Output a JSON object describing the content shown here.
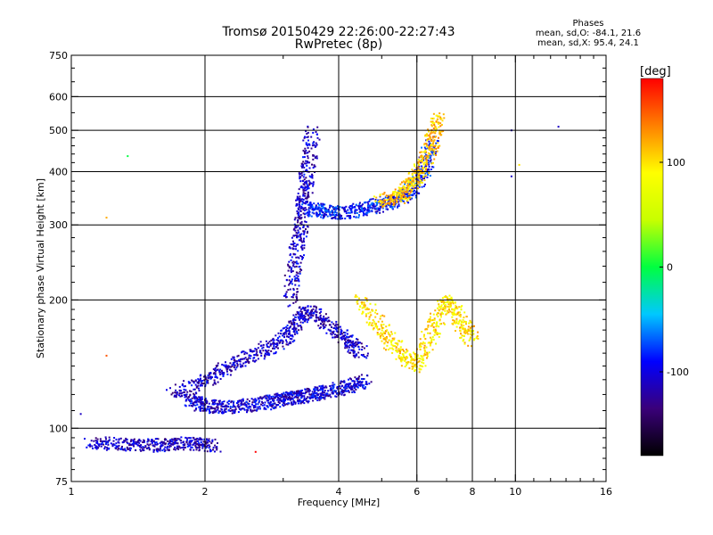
{
  "header": {
    "title_line1": "Tromsø 20150429 22:26:00-22:27:43",
    "title_line2": "RwPretec (8p)"
  },
  "phase_stats": {
    "heading": "Phases",
    "line_o": "mean, sd,O: -84.1, 21.6",
    "line_x": "mean, sd,X:  95.4, 24.1"
  },
  "colorbar": {
    "unit_label": "[deg]",
    "ticks": [
      {
        "value": 100,
        "label": "100"
      },
      {
        "value": 0,
        "label": "0"
      },
      {
        "value": -100,
        "label": "-100"
      }
    ],
    "range": [
      -180,
      180
    ],
    "colors": [
      "#000000",
      "#3a007a",
      "#0000ff",
      "#00c8ff",
      "#00ff40",
      "#c8ff00",
      "#ffff00",
      "#ff8000",
      "#ff0000"
    ]
  },
  "chart_data": {
    "type": "scatter",
    "title": "Tromsø 20150429 22:26:00-22:27:43",
    "subtitle": "RwPretec (8p)",
    "xlabel": "Frequency [MHz]",
    "ylabel": "Stationary phase Virtual Height [km]",
    "xscale": "log",
    "yscale": "log",
    "xlim": [
      1,
      16
    ],
    "ylim": [
      75,
      750
    ],
    "grid": true,
    "xticks": [
      1,
      2,
      4,
      6,
      8,
      10,
      16
    ],
    "yticks": [
      75,
      100,
      200,
      300,
      400,
      500,
      600,
      750
    ],
    "x_grid_lines": [
      2,
      4,
      6,
      8,
      10
    ],
    "y_grid_lines": [
      100,
      200,
      300,
      400,
      500,
      600
    ],
    "color_by": "phase [deg]",
    "traces": [
      {
        "name": "",
        "component": "low-altitude band",
        "x": [
          1.1,
          1.3,
          1.5,
          1.7,
          1.9,
          2.1
        ],
        "y": [
          92,
          92,
          91,
          92,
          92,
          91
        ],
        "phase": -110
      },
      {
        "name": "",
        "component": "lower trace",
        "x": [
          1.85,
          2.0,
          2.2,
          2.5,
          2.8,
          3.0,
          3.2,
          3.5,
          3.8,
          4.2,
          4.6
        ],
        "y": [
          117,
          113,
          112,
          113,
          115,
          117,
          118,
          120,
          122,
          125,
          130
        ],
        "phase": -105
      },
      {
        "name": "",
        "component": "oblique rising trace",
        "x": [
          1.7,
          2.0,
          2.3,
          2.6,
          3.0,
          3.2,
          3.4,
          3.8,
          4.2,
          4.5
        ],
        "y": [
          120,
          130,
          140,
          150,
          160,
          175,
          190,
          175,
          160,
          150
        ],
        "phase": -110
      },
      {
        "name": "",
        "component": "F-layer vertical trace",
        "x": [
          3.1,
          3.2,
          3.3,
          3.35,
          3.4,
          3.5
        ],
        "y": [
          200,
          250,
          300,
          350,
          400,
          500
        ],
        "phase": -110
      },
      {
        "name": "",
        "component": "upper F trace",
        "x": [
          3.4,
          3.7,
          4.0,
          4.5,
          5.0,
          5.5,
          5.8,
          6.2,
          6.5
        ],
        "y": [
          330,
          322,
          320,
          325,
          335,
          345,
          360,
          400,
          470
        ],
        "phase": -90
      },
      {
        "name": "",
        "component": "X-mode trace",
        "x": [
          5.0,
          5.5,
          5.8,
          6.2,
          6.5,
          6.7
        ],
        "y": [
          340,
          350,
          370,
          410,
          470,
          540
        ],
        "phase": 110
      },
      {
        "name": "",
        "component": "scattered echoes",
        "x": [
          4.5,
          5.0,
          5.5,
          6.0,
          6.5,
          7.0,
          7.5,
          8.0
        ],
        "y": [
          200,
          170,
          150,
          140,
          170,
          200,
          180,
          160
        ],
        "phase": 100
      }
    ],
    "isolated_points": [
      {
        "x": 1.34,
        "y": 435,
        "phase": 0
      },
      {
        "x": 1.2,
        "y": 312,
        "phase": 120
      },
      {
        "x": 1.05,
        "y": 108,
        "phase": -110
      },
      {
        "x": 1.2,
        "y": 148,
        "phase": 150
      },
      {
        "x": 2.6,
        "y": 88,
        "phase": 180
      },
      {
        "x": 9.8,
        "y": 500,
        "phase": -110
      },
      {
        "x": 12.5,
        "y": 510,
        "phase": -110
      },
      {
        "x": 9.8,
        "y": 390,
        "phase": -110
      },
      {
        "x": 10.2,
        "y": 415,
        "phase": 100
      }
    ]
  }
}
